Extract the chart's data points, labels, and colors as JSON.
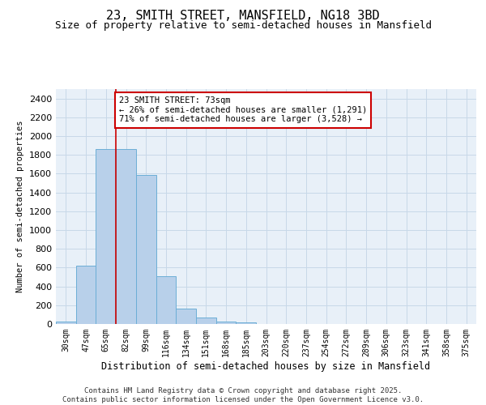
{
  "title1": "23, SMITH STREET, MANSFIELD, NG18 3BD",
  "title2": "Size of property relative to semi-detached houses in Mansfield",
  "xlabel": "Distribution of semi-detached houses by size in Mansfield",
  "ylabel": "Number of semi-detached properties",
  "categories": [
    "30sqm",
    "47sqm",
    "65sqm",
    "82sqm",
    "99sqm",
    "116sqm",
    "134sqm",
    "151sqm",
    "168sqm",
    "185sqm",
    "203sqm",
    "220sqm",
    "237sqm",
    "254sqm",
    "272sqm",
    "289sqm",
    "306sqm",
    "323sqm",
    "341sqm",
    "358sqm",
    "375sqm"
  ],
  "values": [
    25,
    620,
    1860,
    1860,
    1590,
    510,
    160,
    70,
    30,
    15,
    0,
    0,
    0,
    0,
    0,
    0,
    0,
    0,
    0,
    0,
    0
  ],
  "bar_color": "#b8d0ea",
  "bar_edge_color": "#6baed6",
  "vline_color": "#cc0000",
  "annotation_text": "23 SMITH STREET: 73sqm\n← 26% of semi-detached houses are smaller (1,291)\n71% of semi-detached houses are larger (3,528) →",
  "annotation_box_color": "#cc0000",
  "ylim": [
    0,
    2500
  ],
  "yticks": [
    0,
    200,
    400,
    600,
    800,
    1000,
    1200,
    1400,
    1600,
    1800,
    2000,
    2200,
    2400
  ],
  "grid_color": "#c8d8e8",
  "bg_color": "#e8f0f8",
  "footer": "Contains HM Land Registry data © Crown copyright and database right 2025.\nContains public sector information licensed under the Open Government Licence v3.0.",
  "title1_fontsize": 11,
  "title2_fontsize": 9,
  "annotation_fontsize": 7.5,
  "footer_fontsize": 6.5,
  "ylabel_fontsize": 7.5,
  "xlabel_fontsize": 8.5,
  "ytick_fontsize": 8,
  "xtick_fontsize": 7
}
